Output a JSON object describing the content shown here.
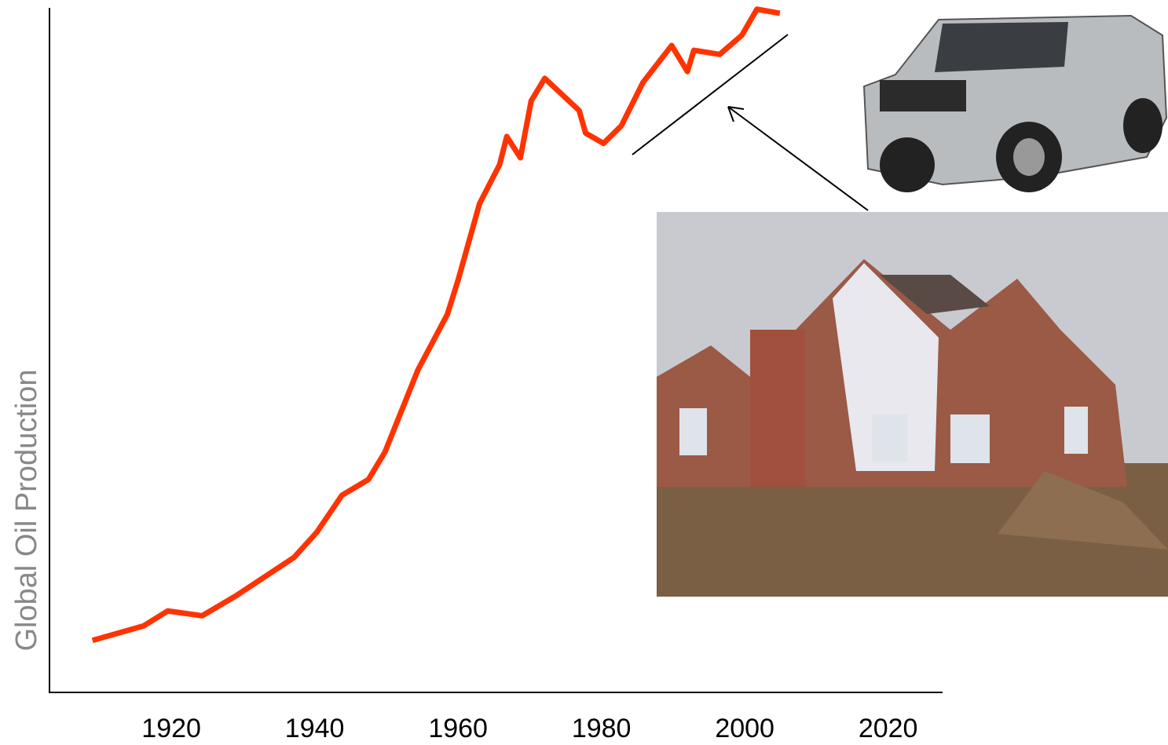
{
  "chart_data": {
    "type": "line",
    "y_label": "Global Oil Production",
    "x": [
      1909.0,
      1916.1,
      1919.5,
      1924.3,
      1929.0,
      1937.1,
      1940.3,
      1943.8,
      1947.5,
      1949.8,
      1954.4,
      1958.5,
      1960.0,
      1963.0,
      1965.8,
      1966.8,
      1968.7,
      1970.2,
      1972.1,
      1976.9,
      1977.8,
      1980.3,
      1982.8,
      1985.8,
      1989.8,
      1992.0,
      1992.9,
      1996.5,
      1999.6,
      2001.7,
      2004.9
    ],
    "series": [
      {
        "color": "#ff3300",
        "values": [
          7.6,
          9.7,
          11.9,
          11.2,
          14.1,
          19.7,
          23.4,
          28.8,
          31.1,
          35.1,
          47.1,
          55.2,
          60.2,
          71.4,
          77.1,
          81.2,
          78.1,
          86.4,
          89.7,
          85.0,
          81.7,
          80.2,
          82.8,
          89.1,
          94.5,
          90.7,
          93.8,
          93.2,
          96.0,
          99.8,
          99.2
        ]
      }
    ],
    "xlim": [
      1903,
      2027.6
    ],
    "xticks": [
      1920,
      1940,
      1960,
      1980,
      2000,
      2020
    ],
    "ylim": [
      0,
      100
    ],
    "grid": false
  }
}
